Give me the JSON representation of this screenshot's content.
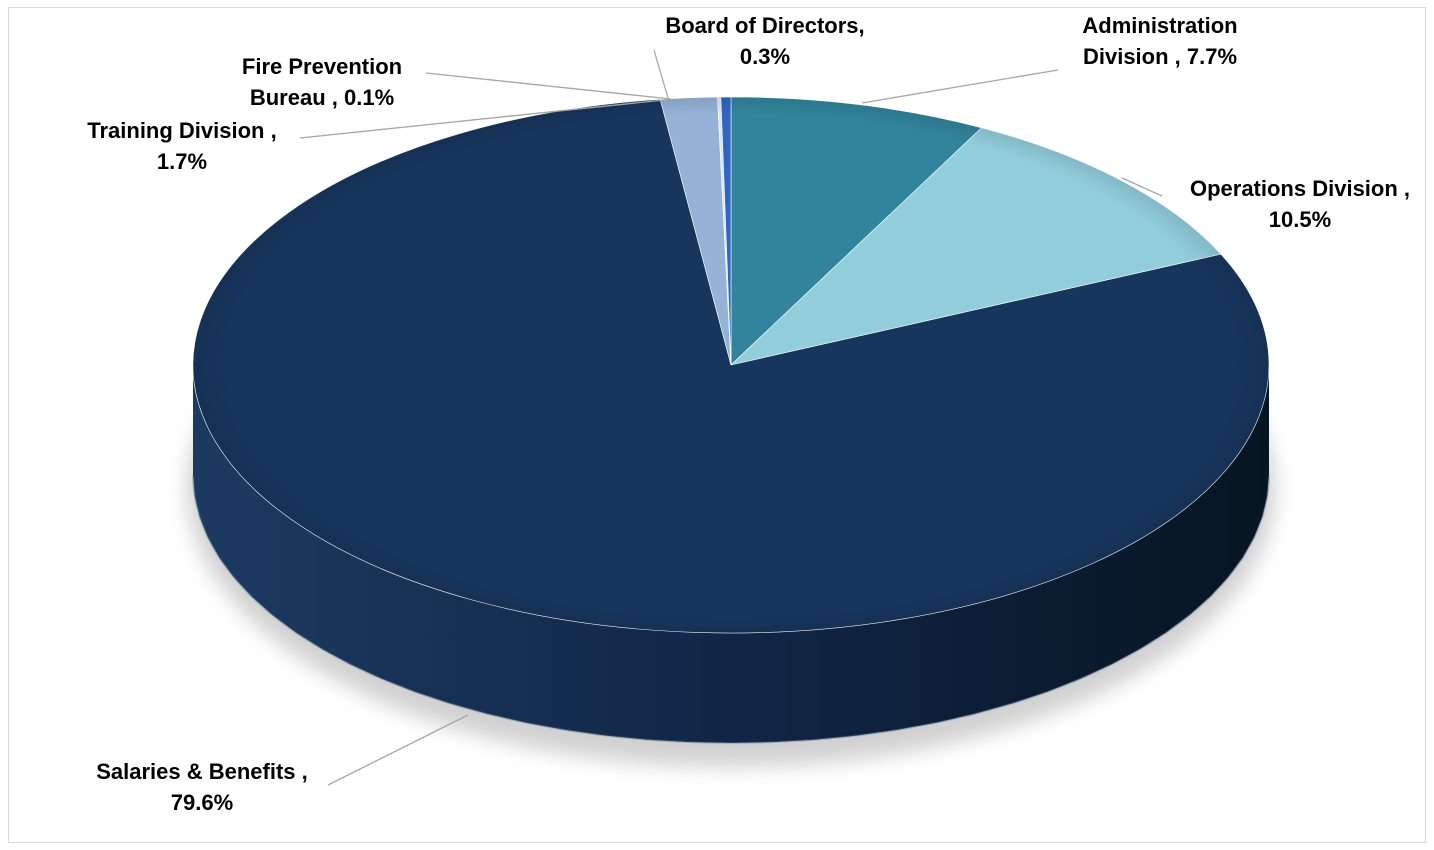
{
  "chart_data": {
    "type": "pie",
    "style": "3d",
    "title": "",
    "slices": [
      {
        "label": "Administration Division",
        "value": 7.7,
        "color": "#31849b"
      },
      {
        "label": "Operations Division",
        "value": 10.5,
        "color": "#92cddc"
      },
      {
        "label": "Salaries & Benefits",
        "value": 79.6,
        "color": "#17365d"
      },
      {
        "label": "Training Division",
        "value": 1.7,
        "color": "#95b3d7"
      },
      {
        "label": "Fire Prevention Bureau",
        "value": 0.1,
        "color": "#dbe5f1"
      },
      {
        "label": "Board of Directors",
        "value": 0.3,
        "color": "#2e66c0"
      }
    ],
    "data_labels": [
      {
        "lines": [
          "Administration",
          "Division , 7.7%"
        ]
      },
      {
        "lines": [
          "Operations Division ,",
          "10.5%"
        ]
      },
      {
        "lines": [
          "Salaries & Benefits ,",
          "79.6%"
        ]
      },
      {
        "lines": [
          "Training Division ,",
          "1.7%"
        ]
      },
      {
        "lines": [
          "Fire Prevention",
          "Bureau , 0.1%"
        ]
      },
      {
        "lines": [
          "Board of Directors,",
          "0.3%"
        ]
      }
    ]
  }
}
